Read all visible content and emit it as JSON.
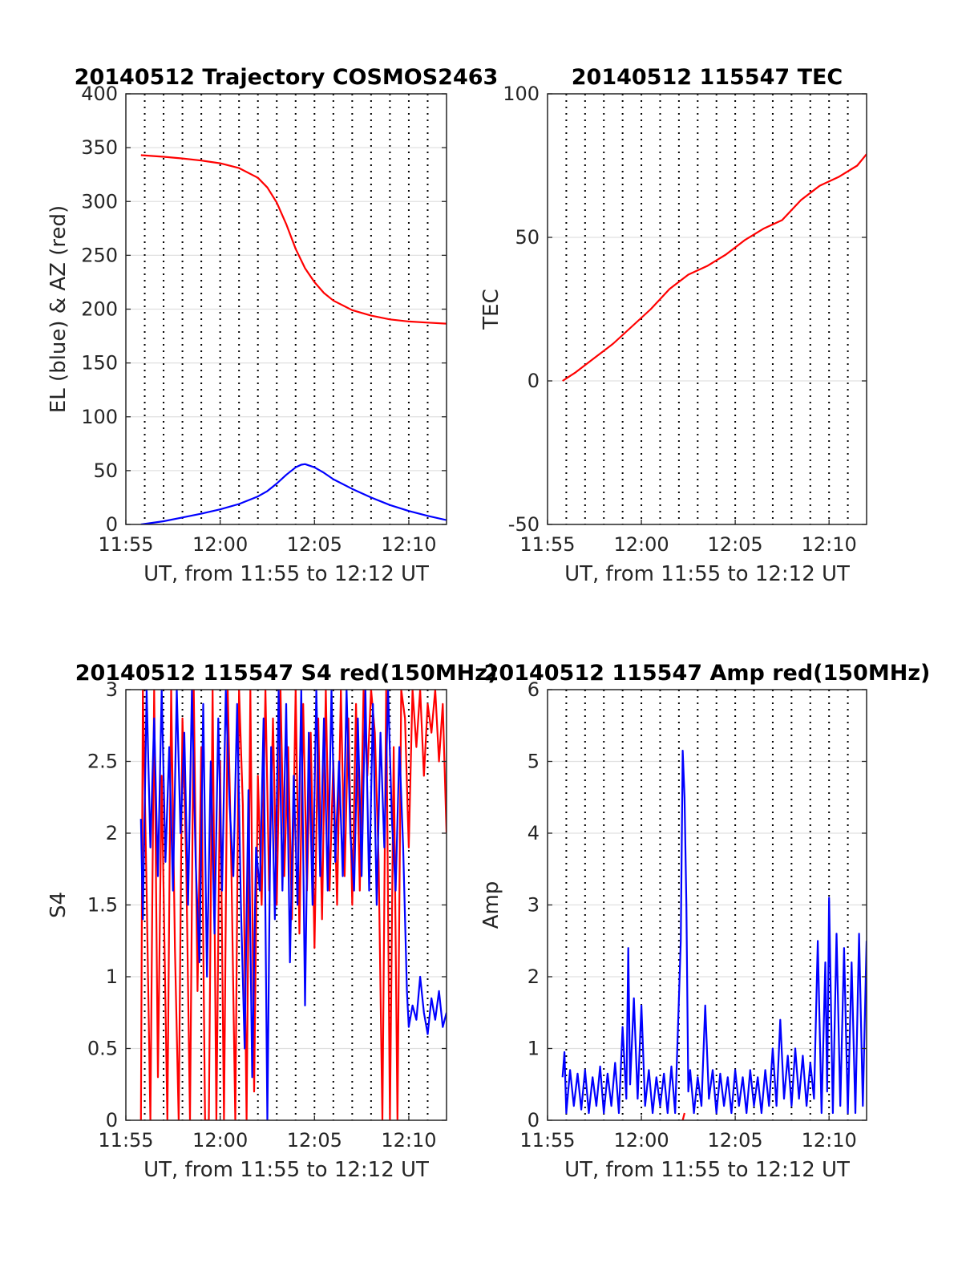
{
  "colors": {
    "el": "#0000ff",
    "az": "#ff0000",
    "red": "#ff0000",
    "blue": "#0000ff"
  },
  "chart_data": [
    {
      "id": "trajectory",
      "type": "line",
      "title": "20140512 Trajectory COSMOS2463",
      "xlabel": "UT, from 11:55 to 12:12 UT",
      "ylabel": "EL (blue) & AZ (red)",
      "xlim": [
        0,
        17
      ],
      "ylim": [
        0,
        400
      ],
      "xticks": [
        0,
        5,
        10,
        15
      ],
      "xtick_labels": [
        "11:55",
        "12:00",
        "12:05",
        "12:10"
      ],
      "yticks": [
        0,
        50,
        100,
        150,
        200,
        250,
        300,
        350,
        400
      ],
      "ytick_labels": [
        "0",
        "50",
        "100",
        "150",
        "200",
        "250",
        "300",
        "350",
        "400"
      ],
      "grid": true,
      "series": [
        {
          "color": "red",
          "x": [
            0.8,
            2,
            3,
            4,
            5,
            6,
            7,
            7.5,
            8,
            8.5,
            9,
            9.5,
            10,
            10.5,
            11,
            12,
            13,
            14,
            15,
            16,
            17
          ],
          "y": [
            343,
            341.5,
            340,
            338,
            335.5,
            331,
            322,
            313,
            299,
            279,
            256,
            238,
            225,
            215,
            208,
            199,
            194,
            190.5,
            188.5,
            187.5,
            186.5
          ]
        },
        {
          "color": "blue",
          "x": [
            0.8,
            2,
            3,
            4,
            5,
            6,
            7,
            7.5,
            8,
            8.5,
            9,
            9.3,
            9.5,
            10,
            10.5,
            11,
            12,
            13,
            14,
            15,
            16,
            17
          ],
          "y": [
            0,
            3,
            6.5,
            10,
            14,
            19,
            26,
            31,
            38,
            46,
            53,
            55.5,
            56,
            53,
            48,
            42,
            33,
            25,
            18,
            12.5,
            8,
            4
          ]
        }
      ]
    },
    {
      "id": "tec",
      "type": "line",
      "title": "20140512 115547 TEC",
      "xlabel": "UT, from 11:55 to 12:12 UT",
      "ylabel": "TEC",
      "xlim": [
        0,
        17
      ],
      "ylim": [
        -50,
        100
      ],
      "xticks": [
        0,
        5,
        10,
        15
      ],
      "xtick_labels": [
        "11:55",
        "12:00",
        "12:05",
        "12:10"
      ],
      "yticks": [
        -50,
        0,
        50,
        100
      ],
      "ytick_labels": [
        "-50",
        "0",
        "50",
        "100"
      ],
      "grid": true,
      "series": [
        {
          "color": "red",
          "x": [
            0.8,
            1.5,
            2.5,
            3.5,
            4.5,
            5.5,
            6.5,
            7.5,
            8.5,
            9.5,
            10.5,
            11.5,
            12.5,
            13.5,
            14.5,
            15.5,
            16.5,
            17
          ],
          "y": [
            0,
            3,
            8,
            13,
            19,
            25,
            32,
            37,
            40,
            44,
            49,
            53,
            56,
            63,
            68,
            71,
            75,
            79
          ]
        }
      ]
    },
    {
      "id": "s4",
      "type": "line",
      "title": "20140512 115547 S4 red(150MHz)",
      "xlabel": "UT, from 11:55 to 12:12 UT",
      "ylabel": "S4",
      "xlim": [
        0,
        17
      ],
      "ylim": [
        0,
        3
      ],
      "xticks": [
        0,
        5,
        10,
        15
      ],
      "xtick_labels": [
        "11:55",
        "12:00",
        "12:05",
        "12:10"
      ],
      "yticks": [
        0,
        0.5,
        1,
        1.5,
        2,
        2.5,
        3
      ],
      "ytick_labels": [
        "0",
        "0.5",
        "1",
        "1.5",
        "2",
        "2.5",
        "3"
      ],
      "grid": true,
      "series": [
        {
          "color": "red",
          "x": [
            0.8,
            0.9,
            1.1,
            1.3,
            1.5,
            1.7,
            1.9,
            2.2,
            2.4,
            2.6,
            2.8,
            3.0,
            3.2,
            3.4,
            3.6,
            3.8,
            4.0,
            4.2,
            4.4,
            4.6,
            4.8,
            5.0,
            5.2,
            5.4,
            5.6,
            5.8,
            6.0,
            6.2,
            6.4,
            6.6,
            6.8,
            7.0,
            7.2,
            7.4,
            7.6,
            7.8,
            8.0,
            8.2,
            8.4,
            8.6,
            8.8,
            9.0,
            9.2,
            9.4,
            9.6,
            9.8,
            10.0,
            10.2,
            10.4,
            10.6,
            10.8,
            11.0,
            11.2,
            11.4,
            11.6,
            11.8,
            12.0,
            12.2,
            12.4,
            12.6,
            12.8,
            13.0,
            13.2,
            13.4,
            13.6,
            13.8,
            14.0,
            14.2,
            14.4,
            14.6,
            14.8,
            15.0,
            15.2,
            15.4,
            15.6,
            15.8,
            16.0,
            16.2,
            16.4,
            16.6,
            16.8,
            17.0
          ],
          "y": [
            0,
            3,
            1.6,
            0,
            3,
            0.3,
            2.4,
            0,
            3,
            1.2,
            0,
            2.8,
            1.8,
            0,
            3,
            0.9,
            2.6,
            0,
            0,
            3,
            0,
            2.5,
            0,
            3,
            1.7,
            0,
            3,
            2.2,
            0,
            3,
            0.2,
            2.4,
            1.5,
            3,
            1.6,
            2.8,
            1.5,
            3,
            1.7,
            2.6,
            1.4,
            3,
            1.3,
            2.9,
            1.6,
            2.7,
            1.2,
            2.8,
            1.4,
            3,
            1.6,
            2.5,
            1.5,
            3,
            1.7,
            2.8,
            1.5,
            2.9,
            1.6,
            3,
            2.4,
            3,
            2.7,
            1.8,
            0,
            3,
            0,
            2.6,
            0,
            3,
            2.8,
            1.9,
            3,
            2.6,
            3,
            2.4,
            2.9,
            2.7,
            3,
            2.5,
            2.9,
            2.0
          ]
        },
        {
          "color": "blue",
          "x": [
            0.8,
            0.9,
            1.1,
            1.3,
            1.5,
            1.7,
            1.9,
            2.1,
            2.3,
            2.5,
            2.7,
            2.9,
            3.1,
            3.3,
            3.5,
            3.7,
            3.9,
            4.1,
            4.3,
            4.5,
            4.7,
            4.9,
            5.1,
            5.3,
            5.5,
            5.7,
            5.9,
            6.1,
            6.3,
            6.5,
            6.7,
            6.9,
            7.1,
            7.3,
            7.5,
            7.7,
            7.9,
            8.1,
            8.3,
            8.5,
            8.7,
            8.9,
            9.1,
            9.3,
            9.5,
            9.7,
            9.9,
            10.1,
            10.3,
            10.5,
            10.7,
            10.9,
            11.1,
            11.3,
            11.5,
            11.7,
            11.9,
            12.1,
            12.3,
            12.5,
            12.7,
            12.9,
            13.1,
            13.3,
            13.5,
            13.7,
            13.9,
            14.1,
            14.3,
            14.5,
            14.7,
            14.9,
            15.0,
            15.2,
            15.4,
            15.6,
            15.8,
            16.0,
            16.2,
            16.4,
            16.6,
            16.8,
            17.0
          ],
          "y": [
            2.1,
            1.4,
            3,
            1.9,
            2.8,
            1.7,
            3,
            1.8,
            2.6,
            1.6,
            3,
            2.0,
            2.7,
            1.5,
            3,
            1.8,
            1.1,
            2.9,
            1.0,
            2.5,
            1.3,
            2.8,
            1.6,
            3,
            2.2,
            1.7,
            2.9,
            1.5,
            0.5,
            2.3,
            0.3,
            1.9,
            1.6,
            2.8,
            0.0,
            2.6,
            1.4,
            3,
            1.6,
            2.9,
            1.1,
            2.4,
            1.5,
            3,
            0.8,
            2.7,
            1.5,
            3,
            1.7,
            2.8,
            1.6,
            3,
            1.8,
            2.5,
            1.7,
            3,
            2.0,
            1.6,
            2.8,
            1.7,
            3,
            1.6,
            2.9,
            1.5,
            2.7,
            1.9,
            3,
            2.1,
            1.6,
            2.6,
            1.9,
            0.9,
            0.65,
            0.8,
            0.7,
            1.0,
            0.75,
            0.6,
            0.85,
            0.7,
            0.9,
            0.65,
            0.75
          ]
        }
      ]
    },
    {
      "id": "amp",
      "type": "line",
      "title": "20140512 115547 Amp red(150MHz)",
      "xlabel": "UT, from 11:55 to 12:12 UT",
      "ylabel": "Amp",
      "xlim": [
        0,
        17
      ],
      "ylim": [
        0,
        6
      ],
      "xticks": [
        0,
        5,
        10,
        15
      ],
      "xtick_labels": [
        "11:55",
        "12:00",
        "12:05",
        "12:10"
      ],
      "yticks": [
        0,
        1,
        2,
        3,
        4,
        5,
        6
      ],
      "ytick_labels": [
        "0",
        "1",
        "2",
        "3",
        "4",
        "5",
        "6"
      ],
      "grid": true,
      "series": [
        {
          "color": "blue",
          "x": [
            0.8,
            0.9,
            1.0,
            1.2,
            1.4,
            1.6,
            1.8,
            2.0,
            2.2,
            2.4,
            2.6,
            2.8,
            3.0,
            3.2,
            3.4,
            3.6,
            3.8,
            4.0,
            4.2,
            4.3,
            4.4,
            4.6,
            4.8,
            5.0,
            5.2,
            5.4,
            5.6,
            5.8,
            6.0,
            6.2,
            6.4,
            6.6,
            6.8,
            7.0,
            7.1,
            7.2,
            7.3,
            7.4,
            7.5,
            7.6,
            7.8,
            8.0,
            8.2,
            8.4,
            8.6,
            8.8,
            9.0,
            9.2,
            9.4,
            9.6,
            9.8,
            10.0,
            10.2,
            10.4,
            10.6,
            10.8,
            11.0,
            11.2,
            11.4,
            11.6,
            11.8,
            12.0,
            12.2,
            12.4,
            12.6,
            12.8,
            13.0,
            13.2,
            13.4,
            13.6,
            13.8,
            14.0,
            14.2,
            14.4,
            14.6,
            14.8,
            14.9,
            15.0,
            15.2,
            15.4,
            15.6,
            15.8,
            16.0,
            16.2,
            16.4,
            16.6,
            16.8,
            17.0
          ],
          "y": [
            0.6,
            0.95,
            0.1,
            0.7,
            0.2,
            0.65,
            0.15,
            0.7,
            0.1,
            0.6,
            0.2,
            0.75,
            0.1,
            0.65,
            0.2,
            0.8,
            0.1,
            1.3,
            0.3,
            2.4,
            0.5,
            1.7,
            0.3,
            1.6,
            0.2,
            0.7,
            0.1,
            0.6,
            0.2,
            0.65,
            0.1,
            0.75,
            0.1,
            1.7,
            2.5,
            5.15,
            4.5,
            3.0,
            0.4,
            0.7,
            0.1,
            0.6,
            0.2,
            1.6,
            0.3,
            0.7,
            0.1,
            0.65,
            0.2,
            0.6,
            0.1,
            0.7,
            0.2,
            0.6,
            0.1,
            0.7,
            0.2,
            0.6,
            0.1,
            0.7,
            0.2,
            1.0,
            0.2,
            1.4,
            0.3,
            0.9,
            0.2,
            1.0,
            0.3,
            0.9,
            0.2,
            0.8,
            0.3,
            2.5,
            0.1,
            2.2,
            0.4,
            3.1,
            0.1,
            2.6,
            0.2,
            2.4,
            0.1,
            2.2,
            0.1,
            2.6,
            0.2,
            2.5
          ]
        },
        {
          "color": "red",
          "x": [
            7.2,
            7.3
          ],
          "y": [
            0.0,
            0.1
          ]
        }
      ]
    }
  ]
}
